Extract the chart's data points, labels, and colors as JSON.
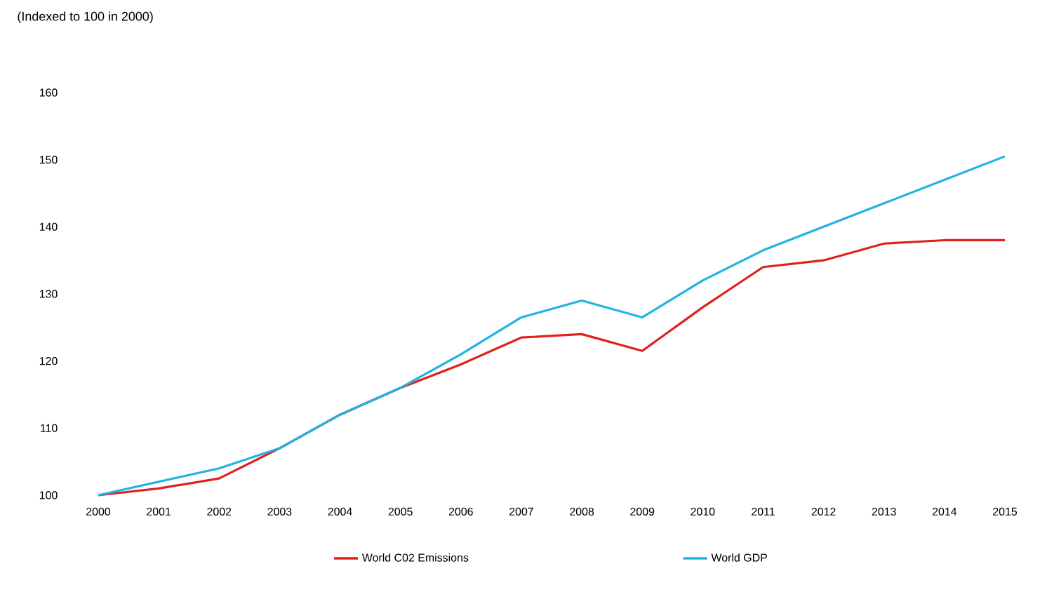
{
  "chart_data": {
    "type": "line",
    "annotations": [
      "(Indexed to 100 in 2000)"
    ],
    "categories": [
      "2000",
      "2001",
      "2002",
      "2003",
      "2004",
      "2005",
      "2006",
      "2007",
      "2008",
      "2009",
      "2010",
      "2011",
      "2012",
      "2013",
      "2014",
      "2015"
    ],
    "series": [
      {
        "name": "World C02 Emissions",
        "color": "#e0201b",
        "values": [
          100,
          101,
          102.5,
          107,
          112,
          116,
          119.5,
          123.5,
          124,
          121.5,
          128,
          134,
          135,
          137.5,
          138,
          138
        ]
      },
      {
        "name": "World GDP",
        "color": "#1fb4e0",
        "values": [
          100,
          102,
          104,
          107,
          112,
          116,
          121,
          126.5,
          129,
          126.5,
          132,
          136.5,
          140,
          143.5,
          147,
          150.5
        ]
      }
    ],
    "ylim": [
      100,
      160
    ],
    "yticks": [
      100,
      110,
      120,
      130,
      140,
      150,
      160
    ],
    "grid": false,
    "legend": "bottom",
    "marker": "none",
    "line_style": "solid"
  }
}
